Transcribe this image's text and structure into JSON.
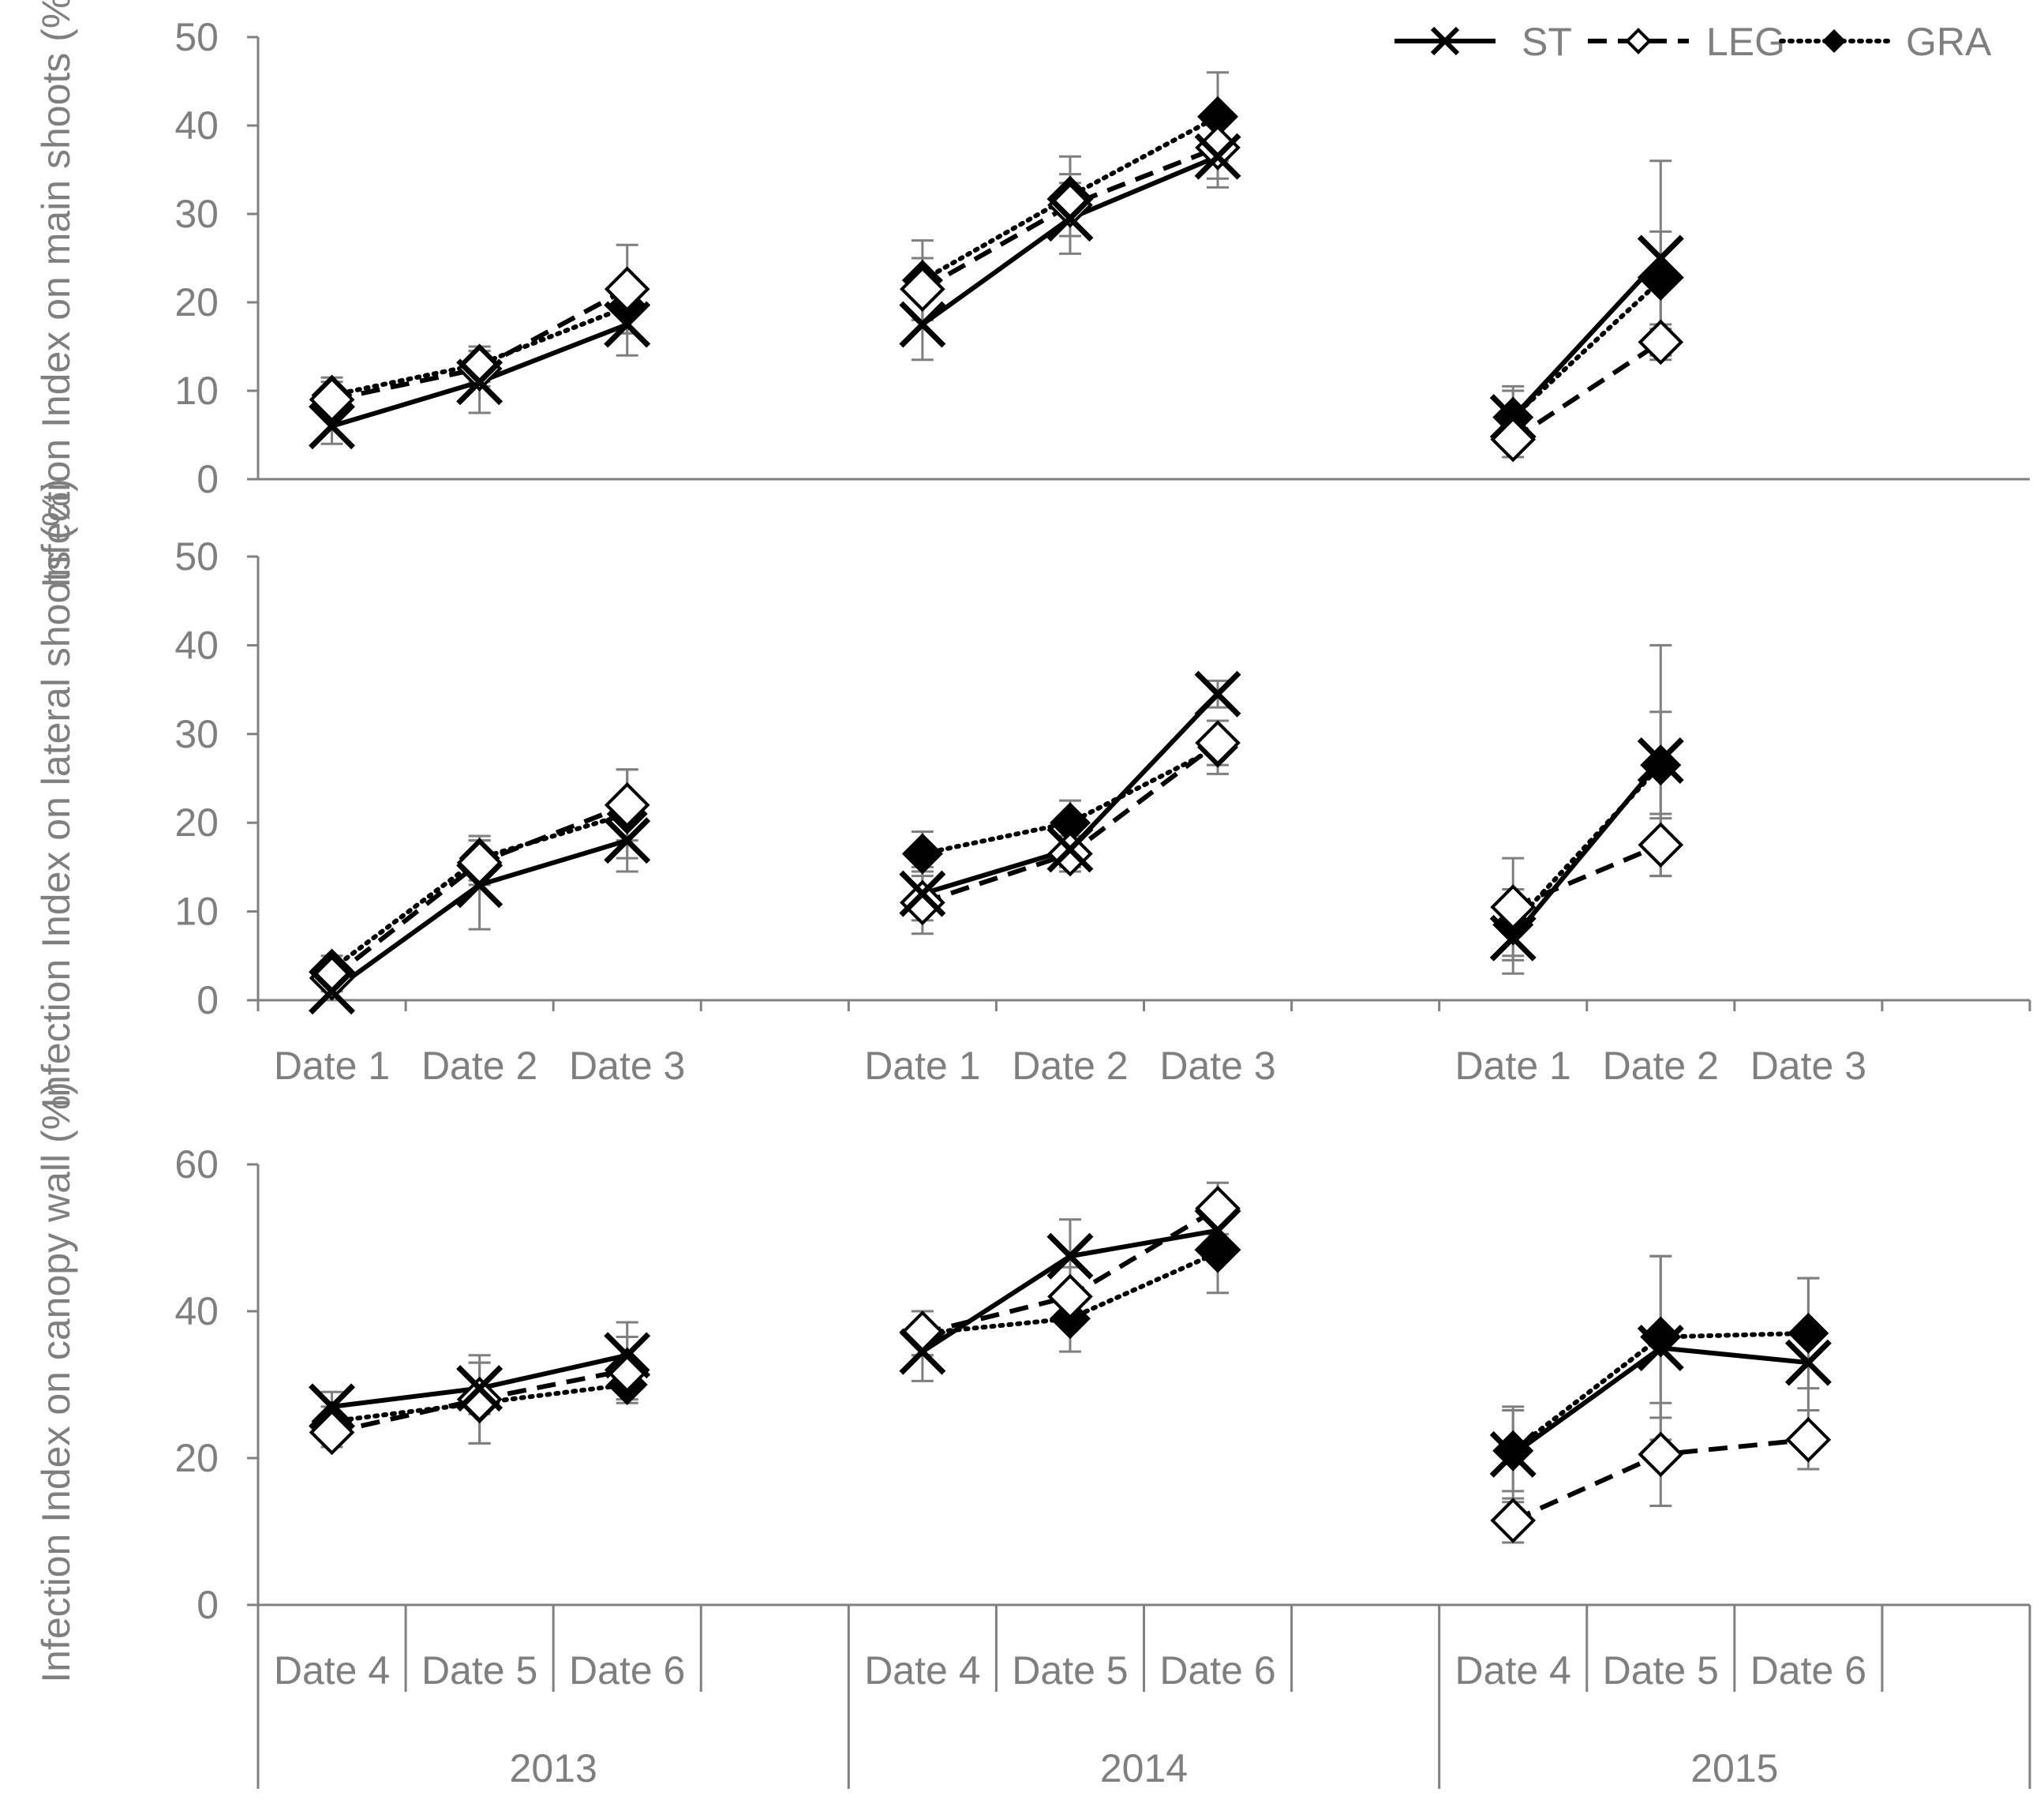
{
  "chart_data": [
    {
      "type": "line",
      "panel": "top",
      "ylabel": "Infection Index on main shoots (%)",
      "ylim": [
        0,
        50
      ],
      "yticks": [
        0,
        10,
        20,
        30,
        40,
        50
      ],
      "groups": [
        {
          "year": "2013",
          "categories": [
            "Date 1",
            "Date 2",
            "Date 3"
          ]
        },
        {
          "year": "2014",
          "categories": [
            "Date 1",
            "Date 2",
            "Date 3"
          ]
        },
        {
          "year": "2015",
          "categories": [
            "Date 1",
            "Date 2",
            "Date 3"
          ]
        }
      ],
      "series": [
        {
          "name": "ST",
          "values": [
            [
              6,
              11,
              17.5
            ],
            [
              17.5,
              29.5,
              36.5
            ],
            [
              7,
              25,
              null
            ]
          ],
          "errors": [
            [
              2,
              3.5,
              3.5
            ],
            [
              4,
              4,
              3.5
            ],
            [
              3,
              11,
              null
            ]
          ]
        },
        {
          "name": "LEG",
          "values": [
            [
              9,
              12.5,
              21.5
            ],
            [
              21.5,
              31,
              37.5
            ],
            [
              4.5,
              15.5,
              null
            ]
          ],
          "errors": [
            [
              2,
              2,
              5
            ],
            [
              3.5,
              3.5,
              3.5
            ],
            [
              2,
              2,
              null
            ]
          ]
        },
        {
          "name": "GRA",
          "values": [
            [
              9.5,
              13,
              19.5
            ],
            [
              22.5,
              32,
              41
            ],
            [
              7,
              22.5,
              null
            ]
          ],
          "errors": [
            [
              2,
              2,
              3
            ],
            [
              4.5,
              4.5,
              5
            ],
            [
              3.5,
              5.5,
              null
            ]
          ]
        }
      ]
    },
    {
      "type": "line",
      "panel": "middle",
      "ylabel": "Infection Index on lateral shoots (%)",
      "ylim": [
        0,
        50
      ],
      "yticks": [
        0,
        10,
        20,
        30,
        40,
        50
      ],
      "groups": [
        {
          "year": "2013",
          "categories": [
            "Date 1",
            "Date 2",
            "Date 3"
          ]
        },
        {
          "year": "2014",
          "categories": [
            "Date 1",
            "Date 2",
            "Date 3"
          ]
        },
        {
          "year": "2015",
          "categories": [
            "Date 1",
            "Date 2",
            "Date 3"
          ]
        }
      ],
      "series": [
        {
          "name": "ST",
          "values": [
            [
              1,
              13,
              18
            ],
            [
              12,
              17,
              34.5
            ],
            [
              7,
              27,
              null
            ]
          ],
          "errors": [
            [
              1.5,
              5,
              3.5
            ],
            [
              3,
              2,
              1.5
            ],
            [
              4,
              13,
              null
            ]
          ]
        },
        {
          "name": "LEG",
          "values": [
            [
              2.5,
              15.5,
              22
            ],
            [
              11,
              16.5,
              29
            ],
            [
              10.5,
              17.5,
              null
            ]
          ],
          "errors": [
            [
              1.5,
              2.5,
              4
            ],
            [
              3.5,
              2,
              2.5
            ],
            [
              5.5,
              3.5,
              null
            ]
          ]
        },
        {
          "name": "GRA",
          "values": [
            [
              3.5,
              16,
              21
            ],
            [
              16.5,
              20,
              28.5
            ],
            [
              8.5,
              26.5,
              null
            ]
          ],
          "errors": [
            [
              1.5,
              2.5,
              5
            ],
            [
              2.5,
              2.5,
              3
            ],
            [
              4,
              6,
              null
            ]
          ]
        }
      ]
    },
    {
      "type": "line",
      "panel": "bottom",
      "ylabel": "Infection Index on canopy wall (%)",
      "ylim": [
        0,
        60
      ],
      "yticks": [
        0,
        20,
        40,
        60
      ],
      "groups": [
        {
          "year": "2013",
          "categories": [
            "Date 4",
            "Date 5",
            "Date 6"
          ]
        },
        {
          "year": "2014",
          "categories": [
            "Date 4",
            "Date 5",
            "Date 6"
          ]
        },
        {
          "year": "2015",
          "categories": [
            "Date 4",
            "Date 5",
            "Date 6"
          ]
        }
      ],
      "series": [
        {
          "name": "ST",
          "values": [
            [
              27,
              29.5,
              34
            ],
            [
              34.5,
              47.5,
              51
            ],
            [
              20.5,
              35,
              33
            ]
          ],
          "errors": [
            [
              2,
              3.5,
              4.5
            ],
            [
              4,
              5,
              3.5
            ],
            [
              6.5,
              12.5,
              11.5
            ]
          ]
        },
        {
          "name": "LEG",
          "values": [
            [
              23.5,
              28,
              32
            ],
            [
              37,
              42,
              54
            ],
            [
              11.5,
              20.5,
              22.5
            ]
          ],
          "errors": [
            [
              2,
              6,
              4.5
            ],
            [
              3,
              4,
              3.5
            ],
            [
              3,
              7,
              4
            ]
          ]
        },
        {
          "name": "GRA",
          "values": [
            [
              25,
              27.5,
              30
            ],
            [
              37,
              39,
              48
            ],
            [
              21,
              36.5,
              37
            ]
          ],
          "errors": [
            [
              2,
              5.5,
              2
            ],
            [
              3,
              4.5,
              5.5
            ],
            [
              5.5,
              11,
              7.5
            ]
          ]
        }
      ]
    }
  ],
  "legend": {
    "position": "top-right",
    "items": [
      {
        "name": "ST",
        "line": "solid",
        "marker": "cross"
      },
      {
        "name": "LEG",
        "line": "dashed",
        "marker": "open-diamond"
      },
      {
        "name": "GRA",
        "line": "dotted",
        "marker": "filled-diamond"
      }
    ]
  },
  "x_groups": [
    "2013",
    "2014",
    "2015"
  ],
  "colors": {
    "series": "#000000",
    "axis": "#808080",
    "text": "#7f7f7f",
    "error_bar": "#7f7f7f"
  }
}
